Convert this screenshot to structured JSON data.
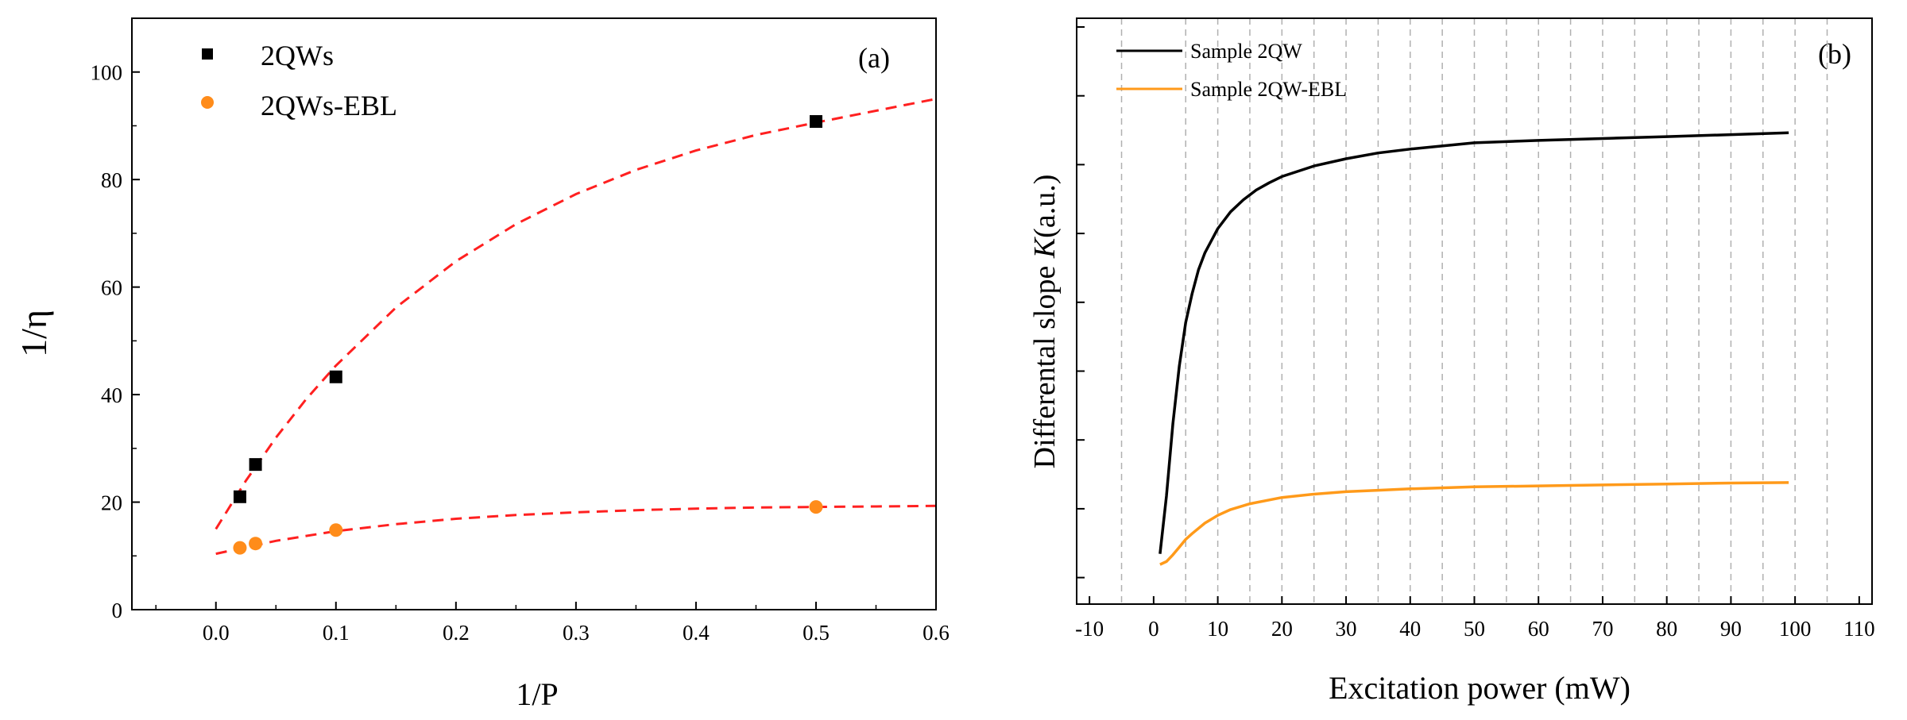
{
  "chart_data": [
    {
      "type": "scatter",
      "panel_label": "(a)",
      "xlabel": "1/P",
      "ylabel": "1/η",
      "xlim": [
        -0.07,
        0.6
      ],
      "ylim": [
        0,
        110
      ],
      "xticks": [
        0.0,
        0.1,
        0.2,
        0.3,
        0.4,
        0.5,
        0.6
      ],
      "xtick_labels": [
        "0.0",
        "0.1",
        "0.2",
        "0.3",
        "0.4",
        "0.5",
        "0.6"
      ],
      "yticks": [
        0,
        20,
        40,
        60,
        80,
        100
      ],
      "ytick_labels": [
        "0",
        "20",
        "40",
        "60",
        "80",
        "100"
      ],
      "legend_position": "top-left",
      "series": [
        {
          "name": "2QWs",
          "marker": "square",
          "color": "#000000",
          "x": [
            0.02,
            0.033,
            0.1,
            0.5
          ],
          "y": [
            21,
            27,
            43.3,
            90.8
          ]
        },
        {
          "name": "2QWs-EBL",
          "marker": "circle",
          "color": "#ff8c1a",
          "x": [
            0.02,
            0.033,
            0.1,
            0.5
          ],
          "y": [
            11.5,
            12.3,
            14.8,
            19.1
          ]
        }
      ],
      "fits": [
        {
          "name": "2QWs fit",
          "style": "dashed",
          "color": "#ff2020",
          "x": [
            0.0,
            0.025,
            0.05,
            0.075,
            0.1,
            0.15,
            0.2,
            0.25,
            0.3,
            0.35,
            0.4,
            0.45,
            0.5,
            0.55,
            0.6
          ],
          "y": [
            15,
            24,
            32,
            39.1,
            45.4,
            56.2,
            64.8,
            71.7,
            77.3,
            81.8,
            85.4,
            88.3,
            90.6,
            92.8,
            95
          ]
        },
        {
          "name": "2QWs-EBL fit",
          "style": "dashed",
          "color": "#ff2020",
          "x": [
            0.0,
            0.05,
            0.1,
            0.15,
            0.2,
            0.25,
            0.3,
            0.35,
            0.4,
            0.45,
            0.5,
            0.55,
            0.6
          ],
          "y": [
            10.4,
            12.8,
            14.6,
            15.9,
            16.9,
            17.6,
            18.1,
            18.5,
            18.8,
            19.0,
            19.1,
            19.2,
            19.3
          ]
        }
      ]
    },
    {
      "type": "line",
      "panel_label": "(b)",
      "xlabel": "Excitation power (mW)",
      "ylabel_prefix": "Differental slope ",
      "ylabel_symbol": "K",
      "ylabel_suffix": "(a.u.)",
      "xlim": [
        -12,
        112
      ],
      "ylim": [
        0,
        1
      ],
      "xticks": [
        -10,
        0,
        10,
        20,
        30,
        40,
        50,
        60,
        70,
        80,
        90,
        100,
        110
      ],
      "xtick_labels": [
        "-10",
        "0",
        "10",
        "20",
        "30",
        "40",
        "50",
        "60",
        "70",
        "80",
        "90",
        "100",
        "110"
      ],
      "minor_gridlines": true,
      "legend_position": "top-left",
      "series": [
        {
          "name": "Sample 2QW",
          "color": "#000000",
          "x": [
            1,
            2,
            3,
            4,
            5,
            6,
            7,
            8,
            10,
            12,
            14,
            16,
            18,
            20,
            25,
            30,
            35,
            40,
            50,
            60,
            70,
            80,
            90,
            99
          ],
          "y": [
            0.04,
            0.16,
            0.31,
            0.43,
            0.52,
            0.58,
            0.63,
            0.665,
            0.715,
            0.75,
            0.775,
            0.795,
            0.81,
            0.823,
            0.845,
            0.86,
            0.872,
            0.88,
            0.893,
            0.898,
            0.902,
            0.906,
            0.91,
            0.914
          ]
        },
        {
          "name": "Sample 2QW-EBL",
          "color": "#ff9a1a",
          "x": [
            1,
            2,
            3,
            4,
            5,
            6,
            8,
            10,
            12,
            15,
            20,
            25,
            30,
            35,
            40,
            50,
            60,
            70,
            80,
            90,
            99
          ],
          "y": [
            0.018,
            0.024,
            0.038,
            0.054,
            0.07,
            0.082,
            0.104,
            0.12,
            0.132,
            0.144,
            0.157,
            0.164,
            0.169,
            0.172,
            0.175,
            0.179,
            0.181,
            0.183,
            0.185,
            0.187,
            0.188
          ]
        }
      ]
    }
  ]
}
